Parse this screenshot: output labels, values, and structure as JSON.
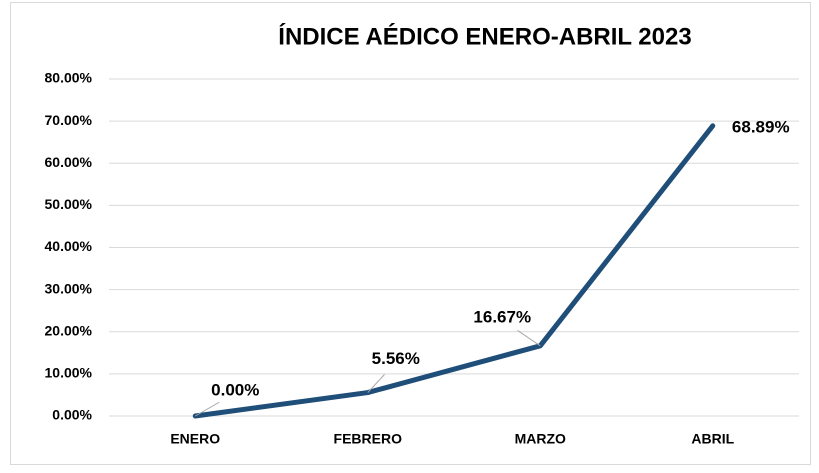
{
  "chart_data": {
    "type": "line",
    "title": "ÍNDICE AÉDICO ENERO-ABRIL 2023",
    "categories": [
      "ENERO",
      "FEBRERO",
      "MARZO",
      "ABRIL"
    ],
    "series": [
      {
        "color": "#1f4e79",
        "values": [
          0,
          5.56,
          16.67,
          68.89
        ],
        "value_labels": [
          "0.00%",
          "5.56%",
          "16.67%",
          "68.89%"
        ]
      }
    ],
    "ylim": [
      0,
      80
    ],
    "yticks": [
      {
        "value": 0,
        "label": "0.00%"
      },
      {
        "value": 10,
        "label": "10.00%"
      },
      {
        "value": 20,
        "label": "20.00%"
      },
      {
        "value": 30,
        "label": "30.00%"
      },
      {
        "value": 40,
        "label": "40.00%"
      },
      {
        "value": 50,
        "label": "50.00%"
      },
      {
        "value": 60,
        "label": "60.00%"
      },
      {
        "value": 70,
        "label": "70.00%"
      },
      {
        "value": 80,
        "label": "80.00%"
      }
    ],
    "grid": true
  }
}
